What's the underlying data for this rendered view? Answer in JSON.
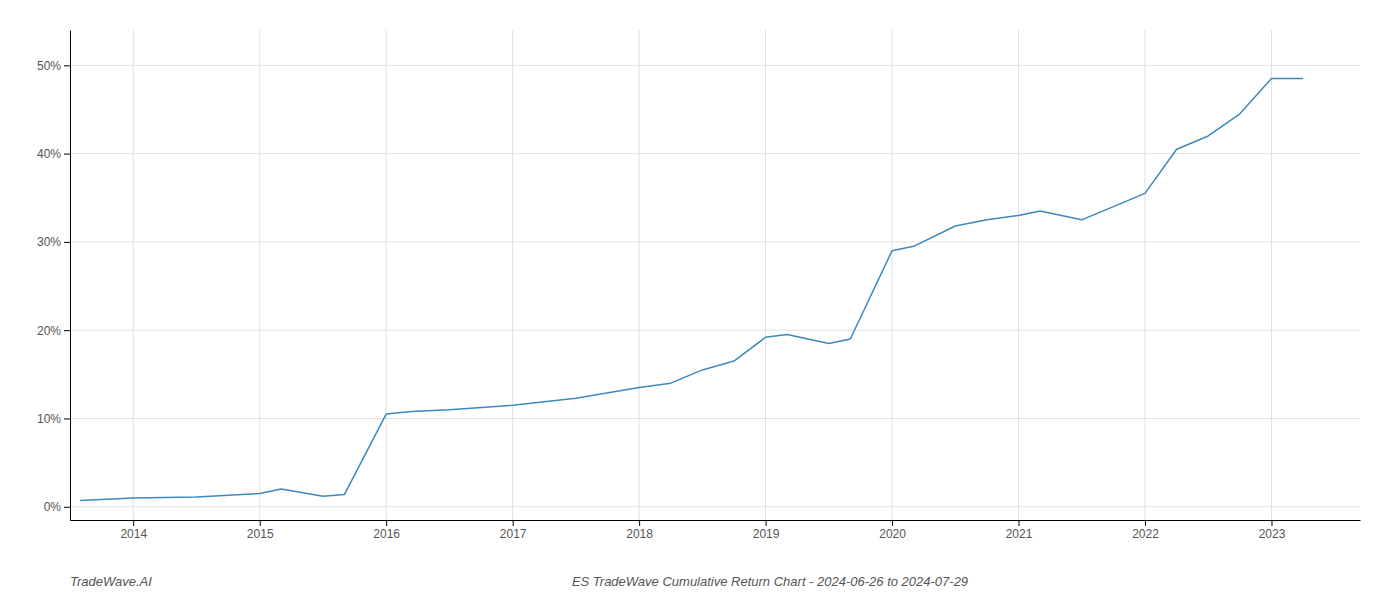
{
  "chart_data": {
    "type": "line",
    "title": "ES TradeWave Cumulative Return Chart - 2024-06-26 to 2024-07-29",
    "annotations": [
      "TradeWave.AI"
    ],
    "x": [
      2013.58,
      2014.0,
      2014.5,
      2015.0,
      2015.17,
      2015.5,
      2015.67,
      2016.0,
      2016.2,
      2016.5,
      2017.0,
      2017.5,
      2018.0,
      2018.25,
      2018.5,
      2018.75,
      2019.0,
      2019.17,
      2019.5,
      2019.67,
      2020.0,
      2020.17,
      2020.5,
      2020.75,
      2021.0,
      2021.17,
      2021.5,
      2022.0,
      2022.25,
      2022.5,
      2022.75,
      2023.0,
      2023.25
    ],
    "values": [
      0.7,
      1.0,
      1.1,
      1.5,
      2.0,
      1.2,
      1.4,
      10.5,
      10.8,
      11.0,
      11.5,
      12.3,
      13.5,
      14.0,
      15.5,
      16.5,
      19.2,
      19.5,
      18.5,
      19.0,
      29.0,
      29.5,
      31.8,
      32.5,
      33.0,
      33.5,
      32.5,
      35.5,
      40.5,
      42.0,
      44.5,
      48.5,
      48.5
    ],
    "color": "#3a8abf",
    "xlim": [
      2013.5,
      2023.7
    ],
    "xticks": [
      2014,
      2015,
      2016,
      2017,
      2018,
      2019,
      2020,
      2021,
      2022,
      2023
    ],
    "ylim": [
      -1.5,
      54
    ],
    "yticks": [
      {
        "value": 0,
        "label": "0%"
      },
      {
        "value": 10,
        "label": "10%"
      },
      {
        "value": 20,
        "label": "20%"
      },
      {
        "value": 30,
        "label": "30%"
      },
      {
        "value": 40,
        "label": "40%"
      },
      {
        "value": 50,
        "label": "50%"
      }
    ],
    "grid": true
  }
}
